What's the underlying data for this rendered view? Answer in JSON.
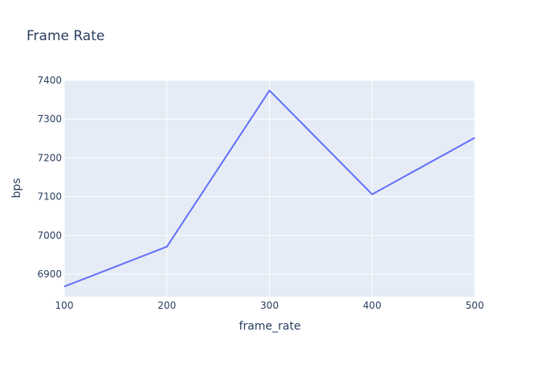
{
  "colors": {
    "plot_background": "#E5ECF6",
    "grid": "#FFFFFF",
    "line": "#636EFA",
    "title_text": "#2A3F5F",
    "axis_text": "#2A3F5F"
  },
  "chart_data": {
    "type": "line",
    "title": "Frame Rate",
    "xlabel": "frame_rate",
    "ylabel": "bps",
    "x": [
      100,
      200,
      300,
      400,
      500
    ],
    "series": [
      {
        "values": [
          6868,
          6971,
          7374,
          7106,
          7252
        ]
      }
    ],
    "xlim": [
      100,
      500
    ],
    "ylim": [
      6842,
      7400
    ],
    "xticks": [
      100,
      200,
      300,
      400,
      500
    ],
    "yticks": [
      6900,
      7000,
      7100,
      7200,
      7300,
      7400
    ],
    "grid": true,
    "legend": "none"
  }
}
